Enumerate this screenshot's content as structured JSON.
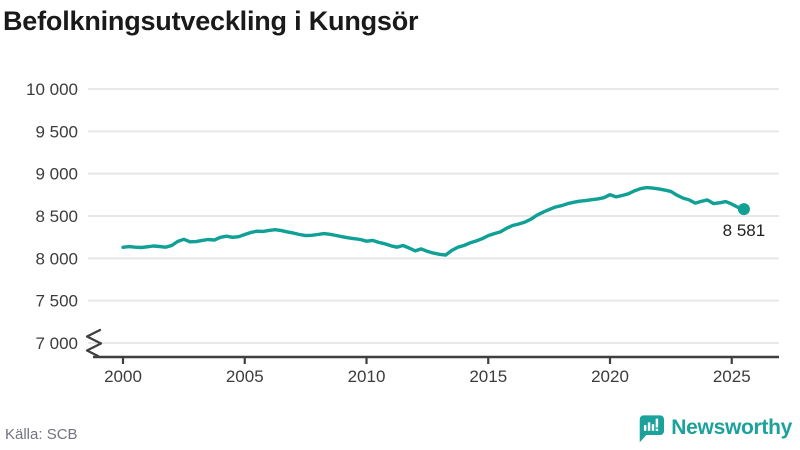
{
  "title": "Befolkningsutveckling i Kungsör",
  "source": "Källa: SCB",
  "logo": {
    "text": "Newsworthy"
  },
  "colors": {
    "accent": "#10A095",
    "logo": "#1BA29A",
    "grid": "#e8e8e8",
    "axis": "#3f3f3f",
    "text": "#3c3c3c",
    "title": "#1a1a1a",
    "source": "#73737d"
  },
  "chart_data": {
    "type": "line",
    "title": "Befolkningsutveckling i Kungsör",
    "xlabel": "",
    "ylabel": "",
    "x_start": 2000,
    "x_step": 0.25,
    "values": [
      8130,
      8138,
      8132,
      8128,
      8136,
      8146,
      8140,
      8132,
      8152,
      8200,
      8225,
      8195,
      8198,
      8212,
      8222,
      8215,
      8248,
      8262,
      8248,
      8256,
      8282,
      8305,
      8320,
      8318,
      8330,
      8338,
      8328,
      8312,
      8298,
      8282,
      8268,
      8272,
      8282,
      8292,
      8284,
      8270,
      8256,
      8242,
      8232,
      8222,
      8202,
      8212,
      8188,
      8172,
      8148,
      8132,
      8152,
      8122,
      8088,
      8112,
      8082,
      8062,
      8048,
      8038,
      8092,
      8130,
      8152,
      8182,
      8205,
      8232,
      8268,
      8292,
      8312,
      8355,
      8388,
      8405,
      8428,
      8462,
      8510,
      8545,
      8576,
      8605,
      8622,
      8645,
      8662,
      8675,
      8682,
      8692,
      8702,
      8716,
      8752,
      8726,
      8742,
      8762,
      8796,
      8822,
      8836,
      8830,
      8820,
      8806,
      8790,
      8746,
      8712,
      8690,
      8652,
      8672,
      8690,
      8646,
      8656,
      8670,
      8640,
      8604,
      8581
    ],
    "end_value": 8581,
    "end_label": "8 581",
    "xticks": [
      2000,
      2005,
      2010,
      2015,
      2020,
      2025
    ],
    "yticks": [
      7000,
      7500,
      8000,
      8500,
      9000,
      9500,
      10000
    ],
    "ylim": [
      7000,
      10000
    ],
    "y_axis_break": true,
    "grid": "horizontal",
    "legend": "none"
  }
}
